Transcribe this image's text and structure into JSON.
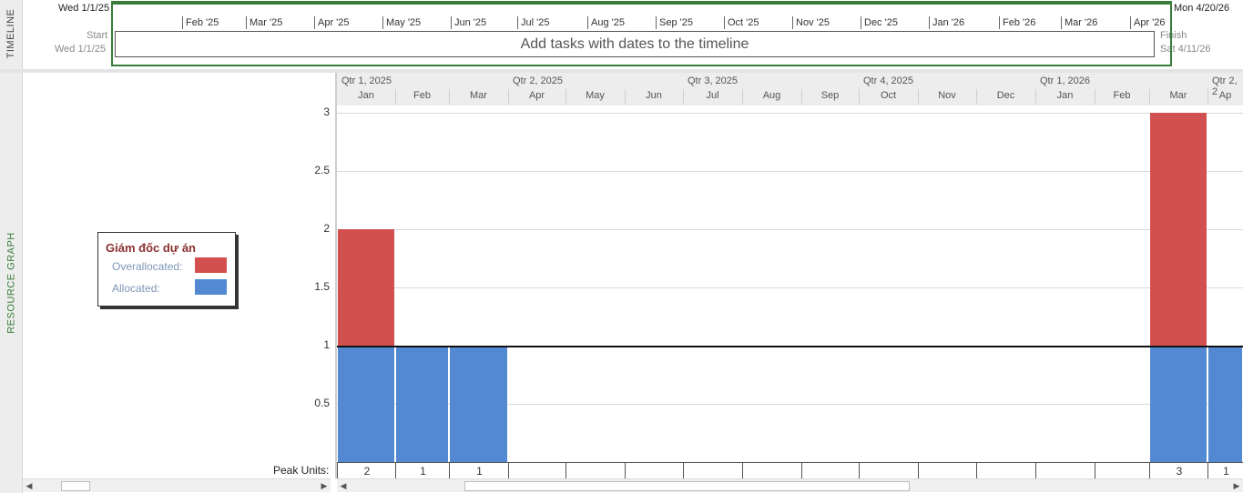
{
  "timeline": {
    "label": "TIMELINE",
    "top_left_date": "Wed 1/1/25",
    "top_right_date": "Mon 4/20/26",
    "start_label": "Start",
    "start_date": "Wed 1/1/25",
    "finish_label": "Finish",
    "finish_date": "Sat 4/11/26",
    "placeholder": "Add tasks with dates to the timeline",
    "months": [
      "Feb '25",
      "Mar '25",
      "Apr '25",
      "May '25",
      "Jun '25",
      "Jul '25",
      "Aug '25",
      "Sep '25",
      "Oct '25",
      "Nov '25",
      "Dec '25",
      "Jan '26",
      "Feb '26",
      "Mar '26",
      "Apr '26"
    ]
  },
  "graph": {
    "label": "RESOURCE GRAPH",
    "quarters": [
      "Qtr 1, 2025",
      "Qtr 2, 2025",
      "Qtr 3, 2025",
      "Qtr 4, 2025",
      "Qtr 1, 2026",
      "Qtr 2, 2"
    ],
    "months": [
      "Jan",
      "Feb",
      "Mar",
      "Apr",
      "May",
      "Jun",
      "Jul",
      "Aug",
      "Sep",
      "Oct",
      "Nov",
      "Dec",
      "Jan",
      "Feb",
      "Mar",
      "Ap"
    ],
    "y_ticks": [
      "3",
      "2.5",
      "2",
      "1.5",
      "1",
      "0.5"
    ],
    "peak_units_label": "Peak Units:",
    "peak_units": [
      "2",
      "1",
      "1",
      "",
      "",
      "",
      "",
      "",
      "",
      "",
      "",
      "",
      "",
      "",
      "3",
      "1"
    ]
  },
  "legend": {
    "resource_name": "Giám đốc dự án",
    "overallocated_label": "Overallocated:",
    "allocated_label": "Allocated:",
    "overallocated_color": "#d35050",
    "allocated_color": "#5289d2"
  },
  "chart_data": {
    "type": "bar",
    "categories": [
      "Jan",
      "Feb",
      "Mar",
      "Apr",
      "May",
      "Jun",
      "Jul",
      "Aug",
      "Sep",
      "Oct",
      "Nov",
      "Dec",
      "Jan",
      "Feb",
      "Mar",
      "Ap"
    ],
    "series": [
      {
        "name": "Allocated",
        "values": [
          1,
          1,
          1,
          0,
          0,
          0,
          0,
          0,
          0,
          0,
          0,
          0,
          0,
          0,
          1,
          1
        ]
      },
      {
        "name": "Overallocated",
        "values": [
          1,
          0,
          0,
          0,
          0,
          0,
          0,
          0,
          0,
          0,
          0,
          0,
          0,
          0,
          2,
          0
        ]
      }
    ],
    "ylim": [
      0,
      3
    ],
    "max_units_line": 1
  }
}
